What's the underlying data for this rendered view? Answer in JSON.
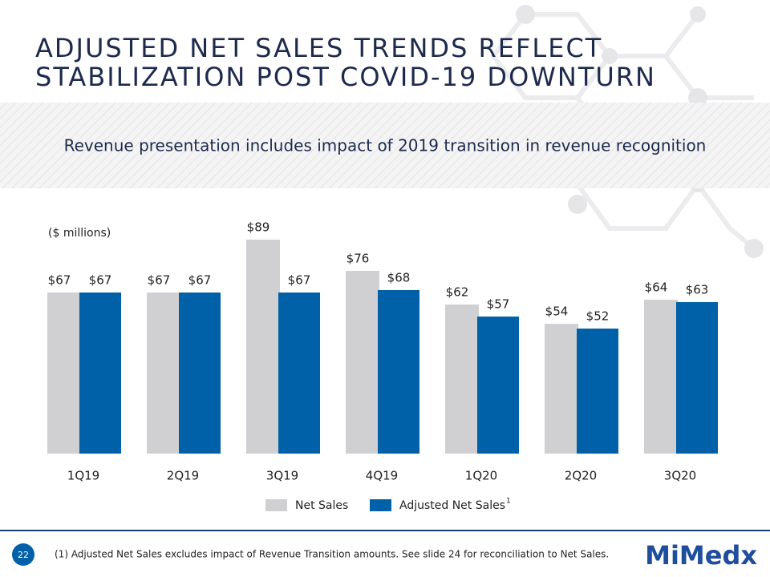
{
  "title_lines": [
    "ADJUSTED NET SALES TRENDS REFLECT",
    "STABILIZATION POST COVID-19 DOWNTURN"
  ],
  "subtitle": "Revenue presentation includes impact of 2019 transition in revenue recognition",
  "chart_data": {
    "type": "bar",
    "units": "($ millions)",
    "categories": [
      "1Q19",
      "2Q19",
      "3Q19",
      "4Q19",
      "1Q20",
      "2Q20",
      "3Q20"
    ],
    "series": [
      {
        "name": "Net Sales",
        "color": "#d0cfd1",
        "values": [
          67,
          67,
          89,
          76,
          62,
          54,
          64
        ],
        "value_labels": [
          "$67",
          "$67",
          "$89",
          "$76",
          "$62",
          "$54",
          "$64"
        ]
      },
      {
        "name": "Adjusted Net Sales",
        "name_superscript": "1",
        "color": "#0061a8",
        "values": [
          67,
          67,
          67,
          68,
          57,
          52,
          63
        ],
        "value_labels": [
          "$67",
          "$67",
          "$67",
          "$68",
          "$57",
          "$52",
          "$63"
        ]
      }
    ],
    "ylim": [
      0,
      100
    ]
  },
  "footnote": "(1) Adjusted Net Sales excludes impact of Revenue Transition amounts.  See slide 24 for reconciliation to Net Sales.",
  "page_number": "22",
  "logo": "MiMedx"
}
